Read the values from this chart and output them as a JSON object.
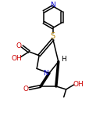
{
  "bg_color": "#ffffff",
  "bond_color": "#000000",
  "atom_colors": {
    "N": "#0000cd",
    "O": "#cc0000",
    "S": "#b8860b",
    "H": "#000000",
    "C": "#000000"
  },
  "figsize": [
    1.15,
    1.44
  ],
  "dpi": 100
}
